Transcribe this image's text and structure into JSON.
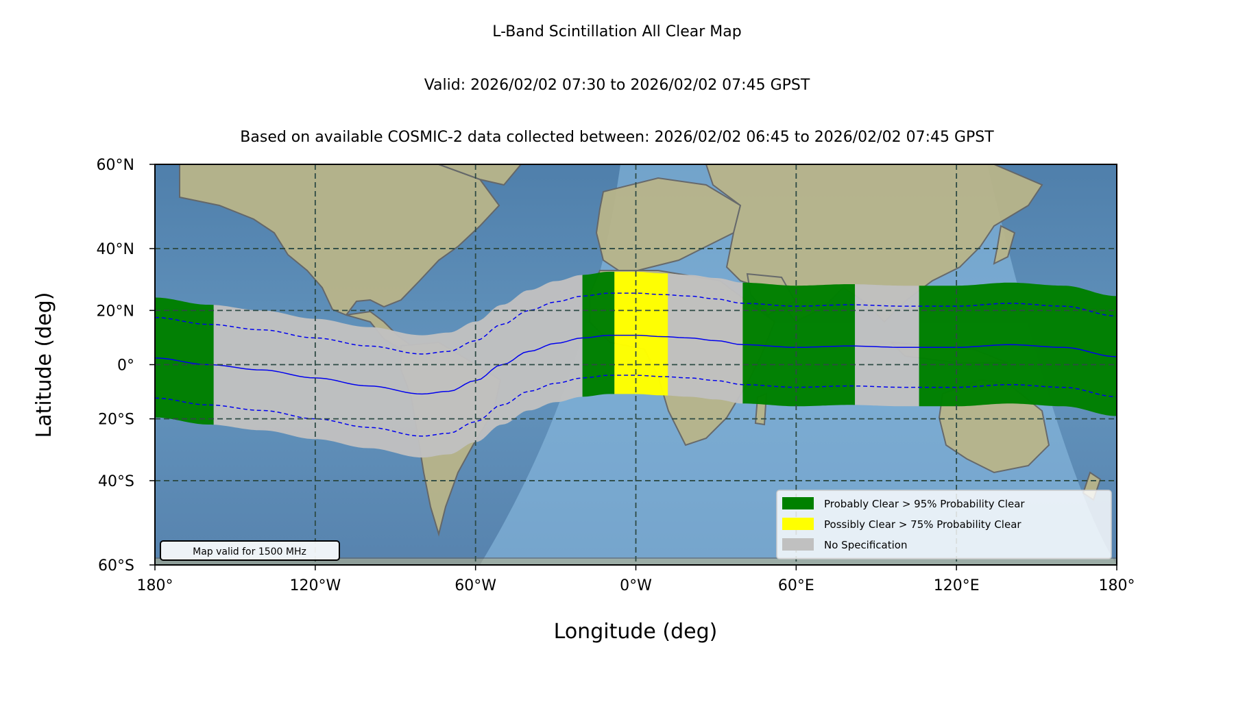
{
  "titles": {
    "main": "L-Band Scintillation All Clear Map",
    "valid": "Valid: 2026/02/02 07:30 to 2026/02/02 07:45 GPST",
    "basis": "Based on available COSMIC-2 data collected between: 2026/02/02 06:45 to 2026/02/02 07:45 GPST"
  },
  "chart_data": {
    "type": "map",
    "xlabel": "Longitude (deg)",
    "ylabel": "Latitude (deg)",
    "xlim": [
      -180,
      180
    ],
    "ylim": [
      -60,
      60
    ],
    "x_ticks": [
      {
        "value": -180,
        "label": "180°"
      },
      {
        "value": -120,
        "label": "120°W"
      },
      {
        "value": -60,
        "label": "60°W"
      },
      {
        "value": 0,
        "label": "0°W"
      },
      {
        "value": 60,
        "label": "60°E"
      },
      {
        "value": 120,
        "label": "120°E"
      },
      {
        "value": 180,
        "label": "180°"
      }
    ],
    "y_ticks": [
      {
        "value": 60,
        "label": "60°N"
      },
      {
        "value": 40,
        "label": "40°N"
      },
      {
        "value": 20,
        "label": "20°N"
      },
      {
        "value": 0,
        "label": "0°"
      },
      {
        "value": -20,
        "label": "20°S"
      },
      {
        "value": -40,
        "label": "40°S"
      },
      {
        "value": -60,
        "label": "60°S"
      }
    ],
    "grid": true,
    "legend_placement": "lower-right",
    "legend": [
      {
        "label": "Probably Clear > 95% Probability Clear",
        "color": "#008000"
      },
      {
        "label": "Possibly Clear > 75% Probability Clear",
        "color": "#ffff00"
      },
      {
        "label": "No Specification",
        "color": "#c0c0c0"
      }
    ],
    "annotation": "Map valid for 1500 MHz",
    "magnetic_equator": [
      [
        -180,
        2.5
      ],
      [
        -160,
        0
      ],
      [
        -140,
        -2
      ],
      [
        -120,
        -5
      ],
      [
        -100,
        -8
      ],
      [
        -80,
        -11
      ],
      [
        -70,
        -10
      ],
      [
        -60,
        -6
      ],
      [
        -50,
        0
      ],
      [
        -40,
        5
      ],
      [
        -30,
        8
      ],
      [
        -20,
        10
      ],
      [
        -10,
        11
      ],
      [
        0,
        11
      ],
      [
        10,
        10.5
      ],
      [
        20,
        10
      ],
      [
        30,
        9
      ],
      [
        40,
        7.5
      ],
      [
        60,
        6.5
      ],
      [
        80,
        7
      ],
      [
        100,
        6.5
      ],
      [
        120,
        6.5
      ],
      [
        140,
        7.5
      ],
      [
        160,
        6.5
      ],
      [
        180,
        3
      ]
    ],
    "band_halfwidth_deg": 22,
    "regions": [
      {
        "from": -180,
        "to": -158,
        "status": "Probably Clear"
      },
      {
        "from": -158,
        "to": -20,
        "status": "No Specification"
      },
      {
        "from": -20,
        "to": -8,
        "status": "Probably Clear"
      },
      {
        "from": -8,
        "to": 12,
        "status": "Possibly Clear"
      },
      {
        "from": 12,
        "to": 40,
        "status": "No Specification"
      },
      {
        "from": 40,
        "to": 82,
        "status": "Probably Clear"
      },
      {
        "from": 82,
        "to": 106,
        "status": "No Specification"
      },
      {
        "from": 106,
        "to": 180,
        "status": "Probably Clear"
      }
    ]
  },
  "colors": {
    "ocean": "#5e8fb7",
    "land": "#b9b58a",
    "border": "#666666",
    "grid": "#2d4a44",
    "contour": "#0000ee"
  }
}
